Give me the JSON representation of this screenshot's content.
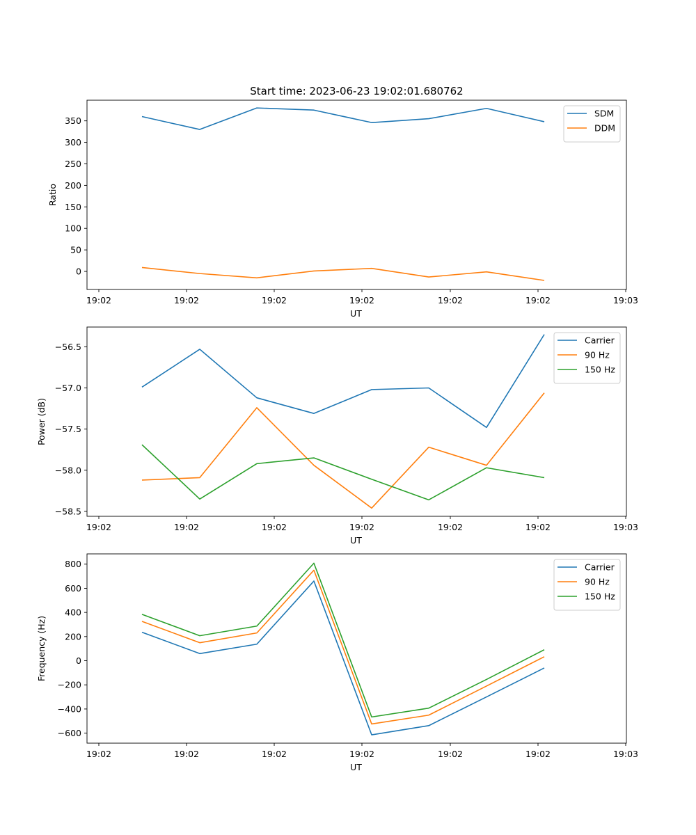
{
  "chart_data": [
    {
      "type": "line",
      "title": "Start time: 2023-06-23 19:02:01.680762",
      "xlabel": "UT",
      "ylabel": "Ratio",
      "x_tick_labels": [
        "19:02",
        "19:02",
        "19:02",
        "19:02",
        "19:02",
        "19:02",
        "19:03"
      ],
      "y_ticks": [
        0,
        50,
        100,
        150,
        200,
        250,
        300,
        350
      ],
      "ylim": [
        -42,
        398
      ],
      "grid": false,
      "legend_position": "upper right",
      "series": [
        {
          "name": "SDM",
          "color": "#1f77b4",
          "values": [
            360,
            330,
            380,
            375,
            346,
            355,
            379,
            348
          ]
        },
        {
          "name": "DDM",
          "color": "#ff7f0e",
          "values": [
            9,
            -5,
            -15,
            1,
            7,
            -13,
            -1,
            -21
          ]
        }
      ]
    },
    {
      "type": "line",
      "title": "",
      "xlabel": "UT",
      "ylabel": "Power (dB)",
      "x_tick_labels": [
        "19:02",
        "19:02",
        "19:02",
        "19:02",
        "19:02",
        "19:02",
        "19:03"
      ],
      "y_ticks": [
        -58.5,
        -58.0,
        -57.5,
        -57.0,
        -56.5
      ],
      "y_tick_labels": [
        "−58.5",
        "−58.0",
        "−57.5",
        "−57.0",
        "−56.5"
      ],
      "ylim": [
        -58.56,
        -56.26
      ],
      "grid": false,
      "legend_position": "upper right",
      "series": [
        {
          "name": "Carrier",
          "color": "#1f77b4",
          "values": [
            -56.99,
            -56.53,
            -57.12,
            -57.31,
            -57.02,
            -57.0,
            -57.48,
            -56.35
          ]
        },
        {
          "name": "90 Hz",
          "color": "#ff7f0e",
          "values": [
            -58.12,
            -58.09,
            -57.24,
            -57.94,
            -58.46,
            -57.72,
            -57.94,
            -57.06
          ]
        },
        {
          "name": "150 Hz",
          "color": "#2ca02c",
          "values": [
            -57.69,
            -58.35,
            -57.92,
            -57.85,
            -58.11,
            -58.36,
            -57.97,
            -58.09
          ]
        }
      ]
    },
    {
      "type": "line",
      "title": "",
      "xlabel": "UT",
      "ylabel": "Frequency (Hz)",
      "x_tick_labels": [
        "19:02",
        "19:02",
        "19:02",
        "19:02",
        "19:02",
        "19:02",
        "19:03"
      ],
      "y_ticks": [
        -600,
        -400,
        -200,
        0,
        200,
        400,
        600,
        800
      ],
      "y_tick_labels": [
        "−600",
        "−400",
        "−200",
        "0",
        "200",
        "400",
        "600",
        "800"
      ],
      "ylim": [
        -683,
        885
      ],
      "grid": false,
      "legend_position": "upper right",
      "series": [
        {
          "name": "Carrier",
          "color": "#1f77b4",
          "values": [
            236,
            59,
            137,
            660,
            -614,
            -538,
            -300,
            -60
          ]
        },
        {
          "name": "90 Hz",
          "color": "#ff7f0e",
          "values": [
            326,
            149,
            230,
            750,
            -524,
            -451,
            -210,
            33
          ]
        },
        {
          "name": "150 Hz",
          "color": "#2ca02c",
          "values": [
            384,
            207,
            287,
            808,
            -466,
            -393,
            -155,
            91
          ]
        }
      ]
    }
  ]
}
